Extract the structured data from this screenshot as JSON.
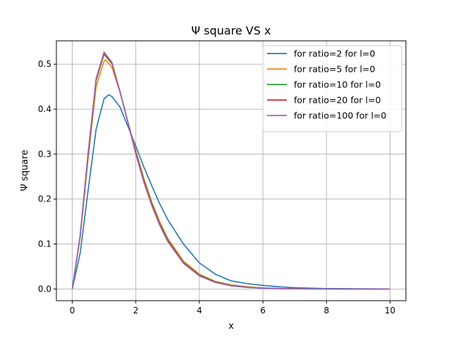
{
  "chart_data": {
    "type": "line",
    "title": "Ψ square VS x",
    "xlabel": "x",
    "ylabel": "Ψ square",
    "xlim": [
      -0.5,
      10.5
    ],
    "ylim": [
      -0.026,
      0.552
    ],
    "xticks": [
      "0",
      "2",
      "4",
      "6",
      "8",
      "10"
    ],
    "yticks": [
      "0.0",
      "0.1",
      "0.2",
      "0.3",
      "0.4",
      "0.5"
    ],
    "grid": true,
    "legend_position": "upper right",
    "series": [
      {
        "name": "for ratio=2 for l=0",
        "color": "#1f77b4",
        "x": [
          0,
          0.25,
          0.5,
          0.75,
          1.0,
          1.15,
          1.25,
          1.5,
          1.75,
          2.0,
          2.25,
          2.5,
          2.75,
          3.0,
          3.5,
          4.0,
          4.5,
          5.0,
          5.5,
          6.0,
          6.5,
          7.0,
          7.5,
          8.0,
          8.5,
          9.0,
          9.5,
          10.0
        ],
        "y": [
          0.0,
          0.08,
          0.22,
          0.355,
          0.423,
          0.432,
          0.428,
          0.405,
          0.362,
          0.318,
          0.272,
          0.23,
          0.19,
          0.155,
          0.1,
          0.058,
          0.033,
          0.018,
          0.012,
          0.008,
          0.005,
          0.003,
          0.002,
          0.001,
          0.001,
          0.0005,
          0.0003,
          0.0002
        ]
      },
      {
        "name": "for ratio=5 for l=0",
        "color": "#ff7f0e",
        "x": [
          0,
          0.25,
          0.5,
          0.75,
          1.0,
          1.05,
          1.25,
          1.5,
          1.75,
          2.0,
          2.25,
          2.5,
          2.75,
          3.0,
          3.5,
          4.0,
          4.5,
          5.0,
          5.5,
          6.0,
          6.5,
          7.0,
          7.5,
          8.0,
          8.5,
          9.0,
          9.5,
          10.0
        ],
        "y": [
          0.0,
          0.115,
          0.29,
          0.45,
          0.507,
          0.51,
          0.493,
          0.438,
          0.372,
          0.308,
          0.247,
          0.194,
          0.15,
          0.113,
          0.062,
          0.033,
          0.017,
          0.009,
          0.005,
          0.0025,
          0.0013,
          0.0007,
          0.0004,
          0.0002,
          0.0001,
          0.0,
          0.0,
          0.0
        ]
      },
      {
        "name": "for ratio=10 for l=0",
        "color": "#2ca02c",
        "x": [
          0,
          0.25,
          0.5,
          0.75,
          1.0,
          1.25,
          1.5,
          1.75,
          2.0,
          2.25,
          2.5,
          2.75,
          3.0,
          3.5,
          4.0,
          4.5,
          5.0,
          5.5,
          6.0,
          6.5,
          7.0,
          7.5,
          8.0,
          8.5,
          9.0,
          9.5,
          10.0
        ],
        "y": [
          0.0,
          0.118,
          0.3,
          0.463,
          0.522,
          0.501,
          0.44,
          0.372,
          0.304,
          0.242,
          0.19,
          0.146,
          0.11,
          0.059,
          0.031,
          0.016,
          0.008,
          0.004,
          0.002,
          0.001,
          0.0005,
          0.0002,
          0.0001,
          0.0,
          0.0,
          0.0,
          0.0
        ]
      },
      {
        "name": "for ratio=20 for l=0",
        "color": "#d62728",
        "x": [
          0,
          0.25,
          0.5,
          0.75,
          1.0,
          1.25,
          1.5,
          1.75,
          2.0,
          2.25,
          2.5,
          2.75,
          3.0,
          3.5,
          4.0,
          4.5,
          5.0,
          5.5,
          6.0,
          6.5,
          7.0,
          7.5,
          8.0,
          8.5,
          9.0,
          9.5,
          10.0
        ],
        "y": [
          0.0,
          0.119,
          0.302,
          0.466,
          0.525,
          0.503,
          0.44,
          0.371,
          0.302,
          0.24,
          0.188,
          0.144,
          0.108,
          0.058,
          0.03,
          0.015,
          0.0075,
          0.0037,
          0.0018,
          0.0009,
          0.0004,
          0.0002,
          0.0001,
          0.0,
          0.0,
          0.0,
          0.0
        ]
      },
      {
        "name": "for ratio=100 for l=0",
        "color": "#9467bd",
        "x": [
          0,
          0.25,
          0.5,
          0.75,
          1.0,
          1.25,
          1.5,
          1.75,
          2.0,
          2.25,
          2.5,
          2.75,
          3.0,
          3.5,
          4.0,
          4.5,
          5.0,
          5.5,
          6.0,
          6.5,
          7.0,
          7.5,
          8.0,
          8.5,
          9.0,
          9.5,
          10.0
        ],
        "y": [
          0.0,
          0.12,
          0.304,
          0.468,
          0.527,
          0.504,
          0.44,
          0.37,
          0.3,
          0.238,
          0.186,
          0.142,
          0.106,
          0.057,
          0.029,
          0.0145,
          0.007,
          0.0035,
          0.0017,
          0.0008,
          0.0004,
          0.0002,
          0.0001,
          0.0,
          0.0,
          0.0,
          0.0
        ]
      }
    ]
  }
}
